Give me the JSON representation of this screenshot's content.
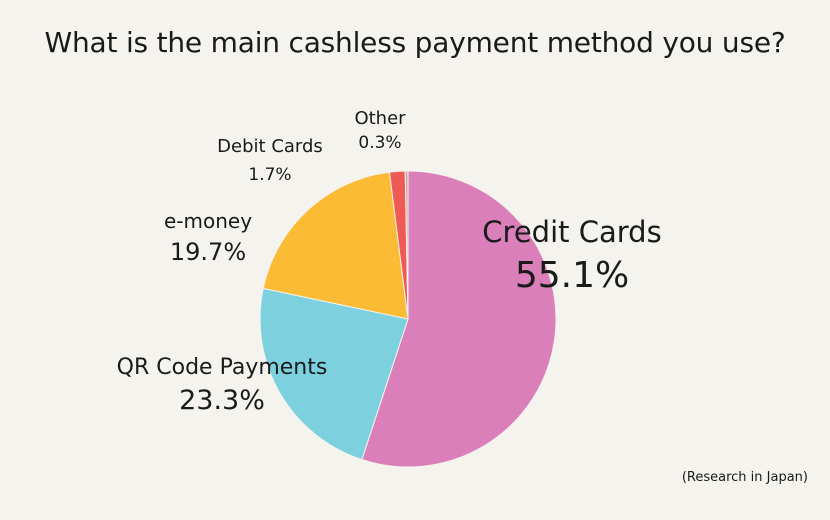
{
  "chart_data": {
    "type": "pie",
    "title": "What is the main cashless payment method you use?",
    "slices": [
      {
        "label": "Credit Cards",
        "value_label": "55.1%",
        "value": 55.1,
        "color": "#da7fba"
      },
      {
        "label": "QR Code Payments",
        "value_label": "23.3%",
        "value": 23.3,
        "color": "#7dd1de"
      },
      {
        "label": "e-money",
        "value_label": "19.7%",
        "value": 19.7,
        "color": "#fbbb35"
      },
      {
        "label": "Debit Cards",
        "value_label": "1.7%",
        "value": 1.7,
        "color": "#ef5a55"
      },
      {
        "label": "Other",
        "value_label": "0.3%",
        "value": 0.3,
        "color": "#c7a99a"
      }
    ],
    "legend": "none"
  },
  "footnote": "(Research in Japan)"
}
